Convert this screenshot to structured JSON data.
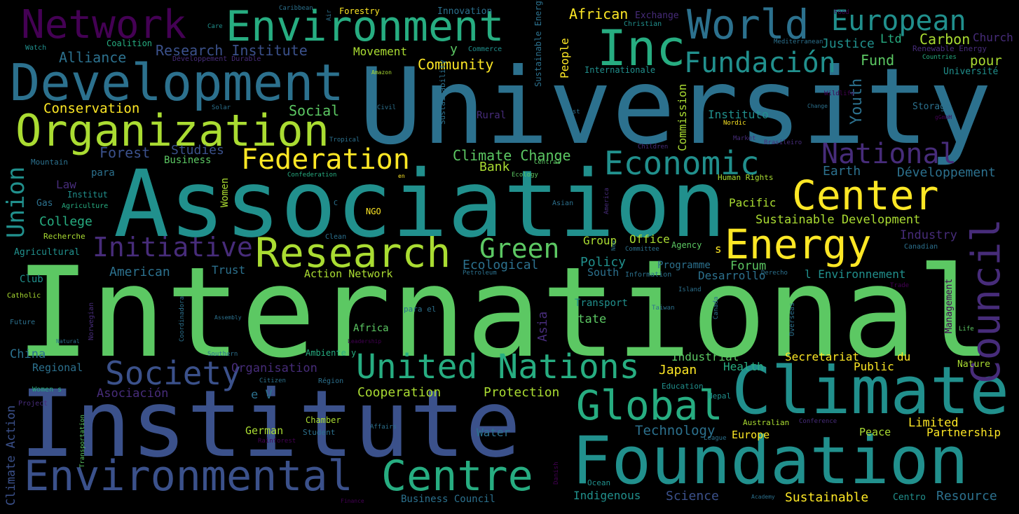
{
  "palette": {
    "background": "#000000",
    "v1": "#440154",
    "v2": "#472c7a",
    "v3": "#3b518b",
    "v4": "#2c718e",
    "v5": "#21908d",
    "v6": "#27ad81",
    "v7": "#5cc863",
    "v8": "#aadc32",
    "v9": "#fde725"
  },
  "words": {
    "international": "International",
    "university": "University",
    "association": "Association",
    "institute": "Institute",
    "foundation": "Foundation",
    "climate": "Climate",
    "development": "Development",
    "organization": "Organization",
    "environment": "Environment",
    "environmental": "Environmental",
    "inc": "Inc",
    "world": "World",
    "network": "Network",
    "european": "European",
    "research": "Research",
    "energy": "Energy",
    "center": "Center",
    "centre": "Centre",
    "global": "Global",
    "society": "Society",
    "united_nations": "United Nations",
    "economic": "Economic",
    "federation": "Federation",
    "national": "National",
    "council": "Council",
    "fundacion": "Fundación",
    "initiative": "Initiative",
    "green": "Green",
    "union": "Union",
    "research_institute": "Research Institute",
    "alliance": "Alliance",
    "coalition": "Coalition",
    "movement": "Movement",
    "community": "Community",
    "conservation": "Conservation",
    "social": "Social",
    "forest": "Forest",
    "studies": "Studies",
    "business": "Business",
    "climate_change": "Climate Change",
    "bank": "Bank",
    "earth": "Earth",
    "developpement": "Développement",
    "youth": "Youth",
    "instituto": "Instituto",
    "commission": "Commission",
    "justice": "Justice",
    "fund": "Fund",
    "ltd": "Ltd",
    "carbon": "Carbon",
    "church": "Church",
    "renewable_energy": "Renewable Energy",
    "pour": "pour",
    "universite": "Université",
    "african": "African",
    "exchange": "Exchange",
    "christian": "Christian",
    "forestry": "Forestry",
    "innovation": "Innovation",
    "caribbean": "Caribbean",
    "food": "Food",
    "people": "People",
    "internationale": "Internationale",
    "commerce": "Commerce",
    "mediterranean": "Mediterranean",
    "countries": "Countries",
    "developpement_durable": "Développement Durable",
    "amazon": "Amazon",
    "care": "Care",
    "watch": "Watch",
    "y": "y",
    "air": "Air",
    "sustainable_energy": "Sustainable Energy",
    "sustainability": "Sustainability",
    "rural": "Rural",
    "solar": "Solar",
    "civil": "Civil",
    "east": "East",
    "tropical": "Tropical",
    "nordic": "Nordic",
    "wildlife": "Wildlife",
    "change": "Change",
    "storage": "Storage",
    "gmbh": "gGmbH",
    "children": "Children",
    "market": "Market",
    "brasileiro": "Brasileiro",
    "mountain": "Mountain",
    "para": "para",
    "law": "Law",
    "institut": "Institut",
    "gas": "Gas",
    "agriculture": "Agriculture",
    "college": "College",
    "recherche": "Recherche",
    "agricultural": "Agricultural",
    "club": "Club",
    "catholic": "Catholic",
    "future": "Future",
    "natural": "Natural",
    "women": "Women",
    "confederation": "Confederation",
    "en": "en",
    "central": "Central",
    "ecology": "Ecology",
    "ngo": "NGO",
    "c": "C",
    "asian": "Asian",
    "america": "America",
    "human_rights": "Human Rights",
    "pacific": "Pacific",
    "sustainable_development": "Sustainable Development",
    "industry": "Industry",
    "canadian": "Canadian",
    "office": "Office",
    "agency": "Agency",
    "group": "Group",
    "new": "New",
    "committee": "Committee",
    "s": "s",
    "policy": "Policy",
    "programme": "Programme",
    "south": "South",
    "information": "Information",
    "forum": "Forum",
    "desarrollo": "Desarrollo",
    "derecho": "Derecho",
    "l_environnement": "l Environnement",
    "trade": "Trade",
    "management": "Management",
    "american": "American",
    "trust": "Trust",
    "ecological": "Ecological",
    "action_network": "Action Network",
    "petroleum": "Petroleum",
    "clean": "Clean",
    "island": "Island",
    "transport": "Transport",
    "taiwan": "Taiwan",
    "canada": "Canada",
    "asia": "Asia",
    "state": "State",
    "overseas": "Overseas",
    "life": "Life",
    "norwegian": "Norwegian",
    "coordinadora": "Coordinadora",
    "assembly": "Assembly",
    "africa": "Africa",
    "leadership": "Leadership",
    "ambiente_y": "Ambiente y",
    "para_el": "para el",
    "china": "China",
    "regional": "Regional",
    "organisation": "Organisation",
    "asociacion": "Asociación",
    "e_v": "e V",
    "southern": "Southern",
    "citizen": "Citizen",
    "region": "Région",
    "women_s": "Women s",
    "cooperation": "Cooperation",
    "protection": "Protection",
    "nepal": "Nepal",
    "industrial": "Industrial",
    "health": "Health",
    "japan": "Japan",
    "secretariat": "Secretariat",
    "public": "Public",
    "du": "du",
    "nature": "Nature",
    "education": "Education",
    "project": "Project",
    "climate_action": "Climate Action",
    "transportation": "Transportation",
    "german": "German",
    "student": "Student",
    "chamber": "Chamber",
    "affairs": "Affairs",
    "rainforest": "Rainforest",
    "water": "Water",
    "technology": "Technology",
    "australian": "Australian",
    "conference": "Conference",
    "league": "League",
    "europe": "Europe",
    "peace": "Peace",
    "limited": "Limited",
    "partnership": "Partnership",
    "danish": "Danish",
    "ocean": "Ocean",
    "indigenous": "Indigenous",
    "science": "Science",
    "academy": "Academy",
    "sustainable": "Sustainable",
    "centro": "Centro",
    "resource": "Resource",
    "finance": "Finance",
    "business_council": "Business Council"
  }
}
